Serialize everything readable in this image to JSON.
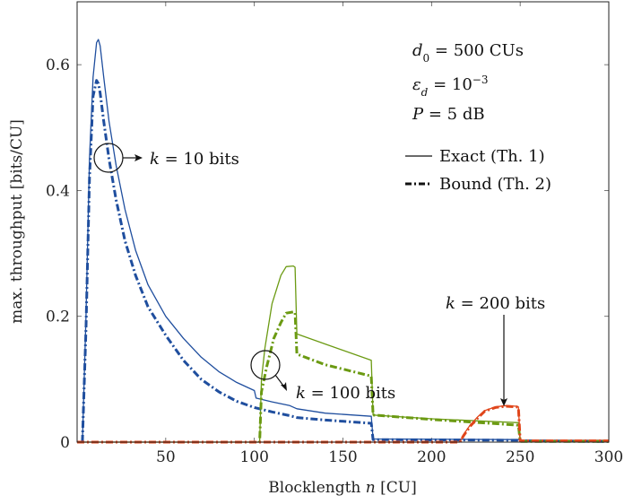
{
  "chart_data": {
    "type": "line",
    "xlabel_text": "Blocklength ",
    "xlabel_var": "n",
    "xlabel_unit": " [CU]",
    "ylabel": "max. throughput [bits/CU]",
    "xlim": [
      0,
      300
    ],
    "ylim": [
      0,
      0.7
    ],
    "xticks": [
      50,
      100,
      150,
      200,
      250,
      300
    ],
    "yticks": [
      0,
      0.2,
      0.4,
      0.6
    ],
    "ytick_labels": [
      "0",
      "0.2",
      "0.4",
      "0.6"
    ],
    "params": {
      "d0": {
        "lhs": "d",
        "sub": "0",
        "rhs": " = 500 CUs"
      },
      "eps": {
        "lhs": "ε",
        "sub": "d",
        "rhs": " = 10",
        "sup": "−3"
      },
      "power": {
        "lhs": "P",
        "rhs": " = 5 dB"
      }
    },
    "legend": [
      {
        "label": "Exact (Th. 1)",
        "style": "solid"
      },
      {
        "label": "Bound (Th. 2)",
        "style": "dashdot"
      }
    ],
    "colors": {
      "k10": "#1f4e9e",
      "k100": "#6b9a12",
      "k200": "#e0451a"
    },
    "annotations": {
      "k10": {
        "var": "k",
        "text": " = 10 bits"
      },
      "k100": {
        "var": "k",
        "text": " = 100 bits"
      },
      "k200": {
        "var": "k",
        "text": " = 200 bits"
      }
    },
    "series": [
      {
        "k": 10,
        "style": "solid",
        "colorKey": "k10",
        "points": [
          [
            3,
            0
          ],
          [
            5,
            0.2
          ],
          [
            7,
            0.45
          ],
          [
            9,
            0.58
          ],
          [
            11,
            0.635
          ],
          [
            12,
            0.64
          ],
          [
            13,
            0.63
          ],
          [
            15,
            0.58
          ],
          [
            18,
            0.51
          ],
          [
            22,
            0.44
          ],
          [
            27,
            0.37
          ],
          [
            33,
            0.305
          ],
          [
            40,
            0.25
          ],
          [
            50,
            0.2
          ],
          [
            60,
            0.165
          ],
          [
            70,
            0.135
          ],
          [
            80,
            0.112
          ],
          [
            90,
            0.095
          ],
          [
            100,
            0.082
          ],
          [
            101,
            0.07
          ],
          [
            110,
            0.064
          ],
          [
            120,
            0.058
          ],
          [
            124,
            0.053
          ],
          [
            140,
            0.046
          ],
          [
            166,
            0.041
          ],
          [
            167,
            0.005
          ],
          [
            250,
            0.004
          ],
          [
            251,
            0.003
          ],
          [
            300,
            0.002
          ]
        ]
      },
      {
        "k": 10,
        "style": "dashdot",
        "colorKey": "k10",
        "points": [
          [
            3,
            0
          ],
          [
            5,
            0.18
          ],
          [
            7,
            0.42
          ],
          [
            9,
            0.55
          ],
          [
            11,
            0.575
          ],
          [
            12,
            0.57
          ],
          [
            13,
            0.555
          ],
          [
            15,
            0.51
          ],
          [
            18,
            0.45
          ],
          [
            22,
            0.385
          ],
          [
            27,
            0.32
          ],
          [
            33,
            0.265
          ],
          [
            40,
            0.215
          ],
          [
            50,
            0.17
          ],
          [
            60,
            0.13
          ],
          [
            70,
            0.1
          ],
          [
            80,
            0.08
          ],
          [
            90,
            0.065
          ],
          [
            100,
            0.055
          ],
          [
            110,
            0.048
          ],
          [
            120,
            0.042
          ],
          [
            124,
            0.039
          ],
          [
            140,
            0.035
          ],
          [
            166,
            0.03
          ],
          [
            167,
            0.004
          ],
          [
            250,
            0.003
          ],
          [
            251,
            0.002
          ],
          [
            300,
            0.001
          ]
        ]
      },
      {
        "k": 100,
        "style": "solid",
        "colorKey": "k100",
        "points": [
          [
            0,
            0
          ],
          [
            103,
            0
          ],
          [
            104,
            0.1
          ],
          [
            106,
            0.15
          ],
          [
            110,
            0.22
          ],
          [
            115,
            0.265
          ],
          [
            118,
            0.279
          ],
          [
            122,
            0.28
          ],
          [
            123,
            0.278
          ],
          [
            124,
            0.172
          ],
          [
            140,
            0.156
          ],
          [
            166,
            0.13
          ],
          [
            167,
            0.043
          ],
          [
            200,
            0.037
          ],
          [
            249,
            0.031
          ],
          [
            250,
            0.001
          ],
          [
            300,
            0.001
          ]
        ]
      },
      {
        "k": 100,
        "style": "dashdot",
        "colorKey": "k100",
        "points": [
          [
            0,
            0
          ],
          [
            103,
            0
          ],
          [
            104,
            0.08
          ],
          [
            107,
            0.12
          ],
          [
            111,
            0.165
          ],
          [
            115,
            0.19
          ],
          [
            118,
            0.205
          ],
          [
            122,
            0.207
          ],
          [
            123,
            0.206
          ],
          [
            124,
            0.14
          ],
          [
            140,
            0.123
          ],
          [
            166,
            0.105
          ],
          [
            167,
            0.043
          ],
          [
            200,
            0.036
          ],
          [
            249,
            0.027
          ],
          [
            250,
            0.001
          ],
          [
            300,
            0.001
          ]
        ]
      },
      {
        "k": 200,
        "style": "solid",
        "colorKey": "k200",
        "points": [
          [
            0,
            0
          ],
          [
            216,
            0
          ],
          [
            218,
            0.012
          ],
          [
            222,
            0.028
          ],
          [
            226,
            0.04
          ],
          [
            230,
            0.05
          ],
          [
            236,
            0.056
          ],
          [
            242,
            0.058
          ],
          [
            248,
            0.057
          ],
          [
            249,
            0.056
          ],
          [
            250,
            0.003
          ],
          [
            300,
            0.003
          ]
        ]
      },
      {
        "k": 200,
        "style": "dashdot",
        "colorKey": "k200",
        "points": [
          [
            0,
            0
          ],
          [
            216,
            0
          ],
          [
            218,
            0.01
          ],
          [
            222,
            0.026
          ],
          [
            226,
            0.038
          ],
          [
            230,
            0.049
          ],
          [
            236,
            0.055
          ],
          [
            242,
            0.057
          ],
          [
            248,
            0.056
          ],
          [
            249,
            0.055
          ],
          [
            250,
            0.002
          ],
          [
            300,
            0.002
          ]
        ]
      }
    ]
  }
}
